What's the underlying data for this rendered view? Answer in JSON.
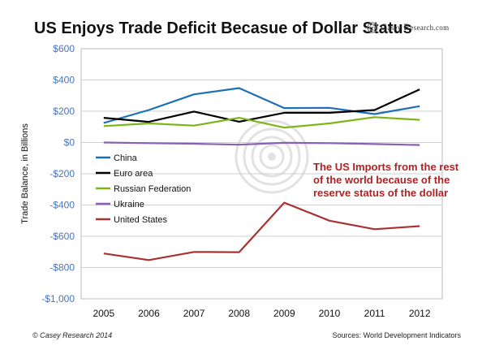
{
  "header": {
    "title": "US Enjoys Trade Deficit Becasue of Dollar Status",
    "logo_text": "Casey Research.com",
    "logo_prefix": "C",
    "logo_rest": "asey ",
    "logo_r": "R",
    "logo_tail": "esearch.com"
  },
  "footer": {
    "copyright": "© Casey Research 2014",
    "source": "Sources:  World Development Indicators"
  },
  "colors": {
    "axis_text_blue": "#4a73b8",
    "grid": "#cfcfcf",
    "annotation": "#b22222"
  },
  "chart_data": {
    "type": "line",
    "title": "",
    "xlabel": "",
    "ylabel": "Trade Balance, in Billions",
    "categories": [
      "2005",
      "2006",
      "2007",
      "2008",
      "2009",
      "2010",
      "2011",
      "2012"
    ],
    "ylim": [
      -1000,
      600
    ],
    "yticks": [
      600,
      400,
      200,
      0,
      -200,
      -400,
      -600,
      -800,
      -1000
    ],
    "ytick_labels": [
      "$600",
      "$400",
      "$200",
      "$0",
      "-$200",
      "-$400",
      "-$600",
      "-$800",
      "-$1,000"
    ],
    "grid": true,
    "legend_position": "left-center",
    "series": [
      {
        "name": "China",
        "color": "#1f6fb8",
        "values": [
          125,
          208,
          308,
          348,
          220,
          222,
          182,
          232
        ]
      },
      {
        "name": "Euro area",
        "color": "#000000",
        "values": [
          158,
          132,
          198,
          133,
          190,
          190,
          208,
          340
        ]
      },
      {
        "name": "Russian Federation",
        "color": "#7cb518",
        "values": [
          105,
          122,
          108,
          158,
          95,
          122,
          162,
          145
        ]
      },
      {
        "name": "Ukraine",
        "color": "#8a5fb5",
        "values": [
          0,
          -4,
          -8,
          -14,
          -2,
          -4,
          -10,
          -16
        ]
      },
      {
        "name": "United States",
        "color": "#a83232",
        "values": [
          -710,
          -752,
          -700,
          -702,
          -385,
          -500,
          -555,
          -535
        ]
      }
    ],
    "annotation": {
      "lines": [
        "The US Imports from the rest",
        "of the world because of the",
        "reserve status of the dollar"
      ]
    }
  }
}
